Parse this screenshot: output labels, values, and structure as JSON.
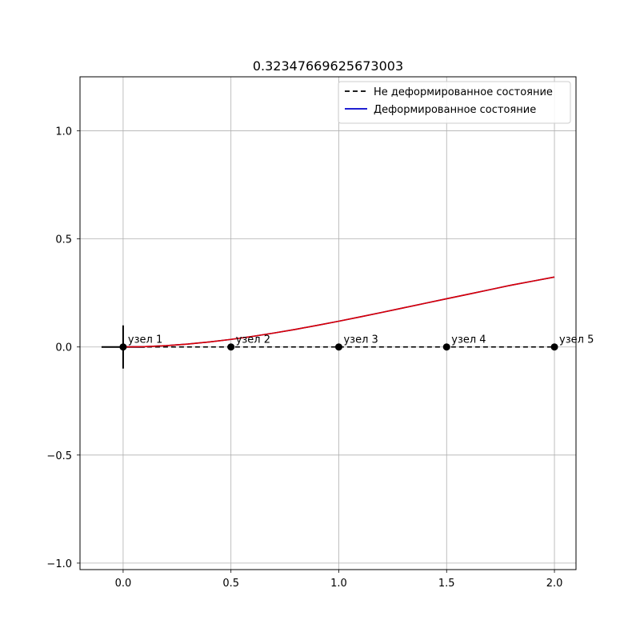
{
  "chart_data": {
    "type": "line",
    "title": "0.32347669625673003",
    "xlabel": "",
    "ylabel": "",
    "xlim": [
      -0.2,
      2.1
    ],
    "ylim": [
      -1.03,
      1.25
    ],
    "xticks": [
      0.0,
      0.5,
      1.0,
      1.5,
      2.0
    ],
    "xtick_labels": [
      "0.0",
      "0.5",
      "1.0",
      "1.5",
      "2.0"
    ],
    "yticks": [
      -1.0,
      -0.5,
      0.0,
      0.5,
      1.0
    ],
    "ytick_labels": [
      "−1.0",
      "−0.5",
      "0.0",
      "0.5",
      "1.0"
    ],
    "grid": true,
    "legend_position": "top-right",
    "series": [
      {
        "name": "Не деформированное состояние",
        "style": "dashed",
        "color": "#000000",
        "x": [
          0.0,
          0.5,
          1.0,
          1.5,
          2.0
        ],
        "y": [
          0.0,
          0.0,
          0.0,
          0.0,
          0.0
        ]
      },
      {
        "name": "Деформированное состояние",
        "style": "solid",
        "color": "#0000cc",
        "x": [
          0.0,
          0.1,
          0.2,
          0.3,
          0.4,
          0.5,
          0.6,
          0.7,
          0.8,
          0.9,
          1.0,
          1.1,
          1.2,
          1.3,
          1.4,
          1.5,
          1.6,
          1.7,
          1.8,
          1.9,
          2.0
        ],
        "y": [
          0.0,
          0.0016,
          0.0062,
          0.0135,
          0.0232,
          0.0351,
          0.049,
          0.0646,
          0.0817,
          0.1,
          0.1193,
          0.1394,
          0.16,
          0.181,
          0.202,
          0.223,
          0.244,
          0.265,
          0.286,
          0.3047,
          0.3235
        ]
      },
      {
        "style": "solid",
        "color": "#dd0000",
        "x": [
          0.0,
          0.1,
          0.2,
          0.3,
          0.4,
          0.5,
          0.6,
          0.7,
          0.8,
          0.9,
          1.0,
          1.1,
          1.2,
          1.3,
          1.4,
          1.5,
          1.6,
          1.7,
          1.8,
          1.9,
          2.0
        ],
        "y": [
          0.0,
          0.0016,
          0.0062,
          0.0135,
          0.0232,
          0.0351,
          0.049,
          0.0646,
          0.0817,
          0.1,
          0.1193,
          0.1394,
          0.16,
          0.181,
          0.202,
          0.223,
          0.244,
          0.265,
          0.286,
          0.3047,
          0.3235
        ]
      }
    ],
    "nodes": [
      {
        "label": "узел 1",
        "x": 0.0,
        "y": 0.0
      },
      {
        "label": "узел 2",
        "x": 0.5,
        "y": 0.0
      },
      {
        "label": "узел 3",
        "x": 1.0,
        "y": 0.0
      },
      {
        "label": "узел 4",
        "x": 1.5,
        "y": 0.0
      },
      {
        "label": "узел 5",
        "x": 2.0,
        "y": 0.0
      }
    ],
    "support": {
      "x": 0.0,
      "y": 0.0,
      "type": "fixed-cross"
    }
  }
}
